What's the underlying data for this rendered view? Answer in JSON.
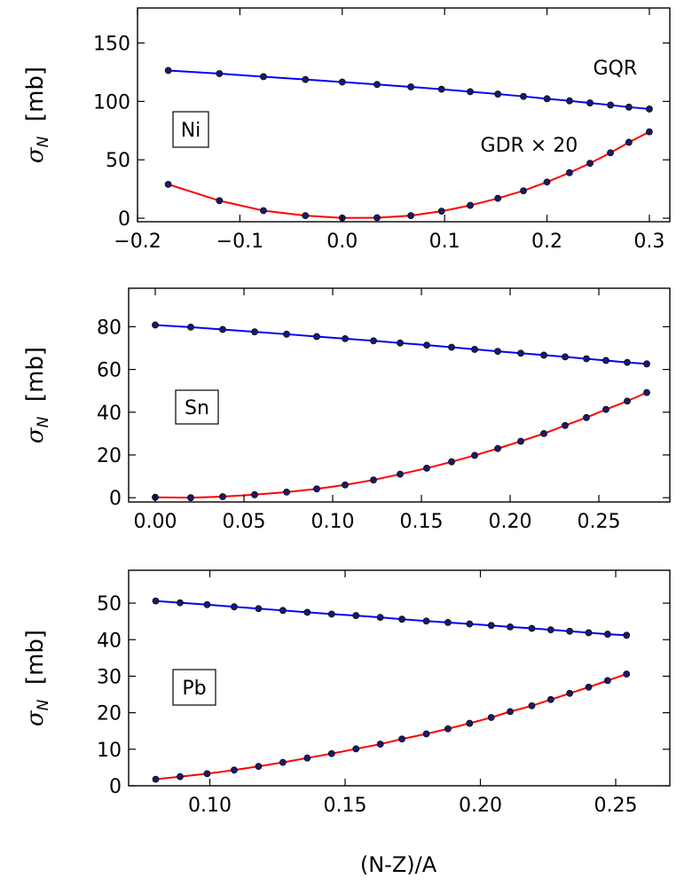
{
  "figure": {
    "x_axis_label": "(N-Z)/A"
  },
  "chart_data": [
    {
      "type": "line",
      "panel_label": "Ni",
      "ylabel_var": "σ",
      "ylabel_sub": "N",
      "ylabel_unit": "[mb]",
      "xlim": [
        -0.2,
        0.32
      ],
      "ylim": [
        -3,
        180
      ],
      "xticks": [
        -0.2,
        -0.1,
        0.0,
        0.1,
        0.2,
        0.3
      ],
      "xtick_labels": [
        "−0.2",
        "−0.1",
        "0.0",
        "0.1",
        "0.2",
        "0.3"
      ],
      "yticks": [
        0,
        50,
        100,
        150
      ],
      "ytick_labels": [
        "0",
        "50",
        "100",
        "150"
      ],
      "annotations": [
        {
          "text": "GQR",
          "at": [
            0.245,
            123
          ]
        },
        {
          "text": "GDR × 20",
          "at": [
            0.135,
            57
          ]
        }
      ],
      "series": [
        {
          "name": "GQR",
          "color": "#0000ff",
          "x": [
            -0.17,
            -0.12,
            -0.077,
            -0.036,
            0.0,
            0.034,
            0.067,
            0.097,
            0.125,
            0.152,
            0.177,
            0.2,
            0.222,
            0.242,
            0.262,
            0.28,
            0.3
          ],
          "y": [
            126.5,
            123.8,
            121.2,
            118.8,
            116.6,
            114.5,
            112.4,
            110.4,
            108.3,
            106.3,
            104.3,
            102.3,
            100.5,
            98.7,
            96.9,
            95.1,
            93.5
          ]
        },
        {
          "name": "GDR × 20",
          "color": "#ff0000",
          "x": [
            -0.17,
            -0.12,
            -0.077,
            -0.036,
            0.0,
            0.034,
            0.067,
            0.097,
            0.125,
            0.152,
            0.177,
            0.2,
            0.222,
            0.242,
            0.262,
            0.28,
            0.3
          ],
          "y": [
            29,
            15,
            6.5,
            2.2,
            0.2,
            0.4,
            2.2,
            6,
            11,
            17,
            23.5,
            31,
            39,
            47,
            56,
            65,
            74
          ]
        }
      ]
    },
    {
      "type": "line",
      "panel_label": "Sn",
      "ylabel_var": "σ",
      "ylabel_sub": "N",
      "ylabel_unit": "[mb]",
      "xlim": [
        -0.015,
        0.29
      ],
      "ylim": [
        -2,
        98
      ],
      "xticks": [
        0.0,
        0.05,
        0.1,
        0.15,
        0.2,
        0.25
      ],
      "xtick_labels": [
        "0.00",
        "0.05",
        "0.10",
        "0.15",
        "0.20",
        "0.25"
      ],
      "yticks": [
        0,
        20,
        40,
        60,
        80
      ],
      "ytick_labels": [
        "0",
        "20",
        "40",
        "60",
        "80"
      ],
      "annotations": [],
      "series": [
        {
          "name": "GQR",
          "color": "#0000ff",
          "x": [
            0.0,
            0.02,
            0.038,
            0.056,
            0.074,
            0.091,
            0.107,
            0.123,
            0.138,
            0.153,
            0.167,
            0.18,
            0.193,
            0.206,
            0.219,
            0.231,
            0.243,
            0.254,
            0.266,
            0.277
          ],
          "y": [
            80.8,
            79.8,
            78.7,
            77.6,
            76.5,
            75.4,
            74.4,
            73.4,
            72.4,
            71.4,
            70.4,
            69.4,
            68.5,
            67.6,
            66.7,
            65.9,
            65,
            64.2,
            63.3,
            62.6
          ]
        },
        {
          "name": "GDR × 20",
          "color": "#ff0000",
          "x": [
            0.0,
            0.02,
            0.038,
            0.056,
            0.074,
            0.091,
            0.107,
            0.123,
            0.138,
            0.153,
            0.167,
            0.18,
            0.193,
            0.206,
            0.219,
            0.231,
            0.243,
            0.254,
            0.266,
            0.277
          ],
          "y": [
            0.2,
            0,
            0.5,
            1.4,
            2.6,
            4.1,
            6,
            8.3,
            11,
            13.8,
            16.8,
            19.8,
            23,
            26.4,
            30,
            33.8,
            37.5,
            41.3,
            45.2,
            49.2
          ]
        }
      ]
    },
    {
      "type": "line",
      "panel_label": "Pb",
      "ylabel_var": "σ",
      "ylabel_sub": "N",
      "ylabel_unit": "[mb]",
      "xlim": [
        0.07,
        0.27
      ],
      "ylim": [
        0,
        59
      ],
      "xticks": [
        0.1,
        0.15,
        0.2,
        0.25
      ],
      "xtick_labels": [
        "0.10",
        "0.15",
        "0.20",
        "0.25"
      ],
      "yticks": [
        0,
        10,
        20,
        30,
        40,
        50
      ],
      "ytick_labels": [
        "0",
        "10",
        "20",
        "30",
        "40",
        "50"
      ],
      "annotations": [],
      "series": [
        {
          "name": "GQR",
          "color": "#0000ff",
          "x": [
            0.08,
            0.089,
            0.099,
            0.109,
            0.118,
            0.127,
            0.136,
            0.145,
            0.154,
            0.163,
            0.171,
            0.18,
            0.188,
            0.196,
            0.204,
            0.211,
            0.219,
            0.226,
            0.233,
            0.24,
            0.247,
            0.254
          ],
          "y": [
            50.6,
            50.1,
            49.6,
            49,
            48.5,
            48,
            47.5,
            47,
            46.6,
            46.1,
            45.6,
            45.1,
            44.7,
            44.3,
            43.9,
            43.5,
            43.1,
            42.7,
            42.3,
            41.9,
            41.5,
            41.2
          ]
        },
        {
          "name": "GDR × 20",
          "color": "#ff0000",
          "x": [
            0.08,
            0.089,
            0.099,
            0.109,
            0.118,
            0.127,
            0.136,
            0.145,
            0.154,
            0.163,
            0.171,
            0.18,
            0.188,
            0.196,
            0.204,
            0.211,
            0.219,
            0.226,
            0.233,
            0.24,
            0.247,
            0.254
          ],
          "y": [
            1.8,
            2.5,
            3.3,
            4.3,
            5.3,
            6.4,
            7.6,
            8.8,
            10.1,
            11.4,
            12.8,
            14.2,
            15.6,
            17.1,
            18.7,
            20.3,
            21.9,
            23.6,
            25.3,
            27,
            28.8,
            30.6
          ]
        }
      ]
    }
  ]
}
